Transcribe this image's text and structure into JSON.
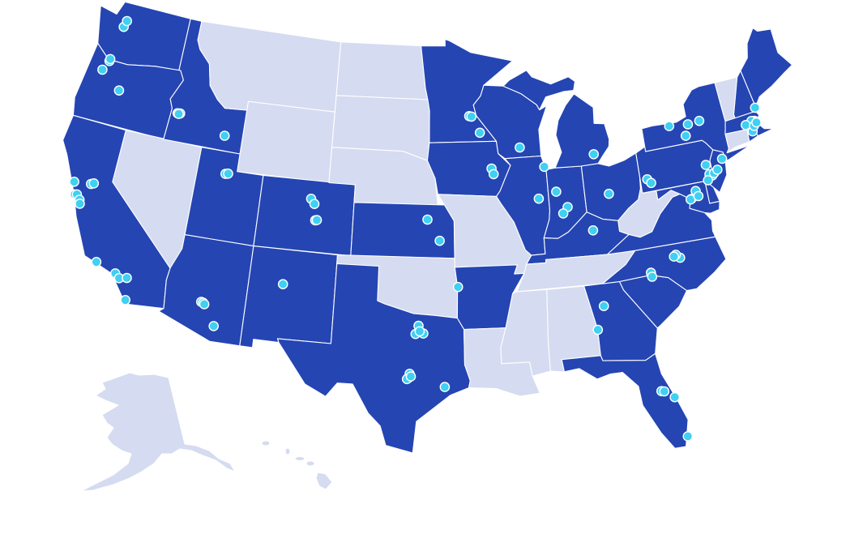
{
  "map": {
    "projection": "albers-usa",
    "colors": {
      "highlighted_state": "#2545b3",
      "other_state": "#d5dbf0",
      "border": "#ffffff",
      "location_dot": "#3fd0f2",
      "dot_outline": "#ffffff"
    },
    "highlighted_states": [
      "WA",
      "OR",
      "CA",
      "ID",
      "UT",
      "AZ",
      "CO",
      "NM",
      "TX",
      "KS",
      "MN",
      "IA",
      "WI",
      "IL",
      "MI",
      "IN",
      "OH",
      "KY",
      "AR",
      "PA",
      "NY",
      "NJ",
      "MD",
      "DE",
      "VA",
      "NC",
      "SC",
      "GA",
      "FL",
      "ME",
      "NH",
      "MA",
      "RI"
    ],
    "other_states": [
      "NV",
      "MT",
      "WY",
      "ND",
      "SD",
      "NE",
      "OK",
      "MO",
      "LA",
      "MS",
      "AL",
      "TN",
      "WV",
      "VT",
      "CT",
      "AK",
      "HI"
    ],
    "locations": [
      [
        -122.33,
        47.61
      ],
      [
        -122.2,
        47.98
      ],
      [
        -122.68,
        45.52
      ],
      [
        -122.66,
        45.64
      ],
      [
        -123.03,
        44.94
      ],
      [
        -121.31,
        44.06
      ],
      [
        -116.2,
        43.62
      ],
      [
        -116.4,
        43.6
      ],
      [
        -116.3,
        43.58
      ],
      [
        -112.45,
        42.87
      ],
      [
        -122.71,
        38.44
      ],
      [
        -121.49,
        38.58
      ],
      [
        -121.3,
        38.65
      ],
      [
        -122.42,
        37.77
      ],
      [
        -122.27,
        37.8
      ],
      [
        -121.99,
        37.55
      ],
      [
        -121.89,
        37.34
      ],
      [
        -119.7,
        34.42
      ],
      [
        -118.24,
        34.05
      ],
      [
        -117.91,
        33.84
      ],
      [
        -117.4,
        33.95
      ],
      [
        -117.16,
        32.72
      ],
      [
        -111.89,
        40.76
      ],
      [
        -111.7,
        40.8
      ],
      [
        -105.27,
        40.01
      ],
      [
        -104.99,
        39.74
      ],
      [
        -104.82,
        38.83
      ],
      [
        -104.7,
        38.85
      ],
      [
        -112.07,
        33.45
      ],
      [
        -111.93,
        33.42
      ],
      [
        -111.84,
        33.35
      ],
      [
        -110.97,
        32.22
      ],
      [
        -106.65,
        35.08
      ],
      [
        -97.13,
        33.21
      ],
      [
        -96.8,
        32.78
      ],
      [
        -97.33,
        32.75
      ],
      [
        -97.05,
        32.9
      ],
      [
        -97.74,
        30.27
      ],
      [
        -97.68,
        30.5
      ],
      [
        -97.85,
        30.2
      ],
      [
        -97.6,
        30.35
      ],
      [
        -95.37,
        29.76
      ],
      [
        -96.57,
        39.18
      ],
      [
        -95.67,
        37.99
      ],
      [
        -94.4,
        35.39
      ],
      [
        -93.27,
        44.98
      ],
      [
        -93.09,
        44.95
      ],
      [
        -92.46,
        44.02
      ],
      [
        -91.67,
        41.98
      ],
      [
        -91.53,
        41.66
      ],
      [
        -89.4,
        43.07
      ],
      [
        -87.63,
        41.88
      ],
      [
        -88.24,
        40.12
      ],
      [
        -86.9,
        40.42
      ],
      [
        -86.16,
        39.5
      ],
      [
        -86.53,
        39.17
      ],
      [
        -83.74,
        42.28
      ],
      [
        -83.0,
        39.96
      ],
      [
        -84.5,
        38.04
      ],
      [
        -80.0,
        40.44
      ],
      [
        -79.75,
        40.2
      ],
      [
        -77.61,
        43.16
      ],
      [
        -76.15,
        43.05
      ],
      [
        -75.23,
        43.1
      ],
      [
        -76.5,
        42.44
      ],
      [
        -74.17,
        40.74
      ],
      [
        -75.47,
        40.6
      ],
      [
        -75.16,
        39.95
      ],
      [
        -75.35,
        40.05
      ],
      [
        -75.0,
        40.05
      ],
      [
        -74.7,
        40.2
      ],
      [
        -75.55,
        39.74
      ],
      [
        -77.04,
        38.9
      ],
      [
        -77.1,
        38.88
      ],
      [
        -76.61,
        39.29
      ],
      [
        -76.49,
        38.98
      ],
      [
        -71.06,
        42.36
      ],
      [
        -71.12,
        42.37
      ],
      [
        -71.3,
        42.4
      ],
      [
        -71.8,
        42.26
      ],
      [
        -71.41,
        41.82
      ],
      [
        -71.2,
        42.1
      ],
      [
        -70.95,
        42.25
      ],
      [
        -70.76,
        43.07
      ],
      [
        -78.64,
        35.78
      ],
      [
        -78.9,
        35.99
      ],
      [
        -79.05,
        35.91
      ],
      [
        -80.84,
        35.23
      ],
      [
        -80.8,
        35.0
      ],
      [
        -84.39,
        33.75
      ],
      [
        -84.99,
        32.46
      ],
      [
        -81.38,
        28.54
      ],
      [
        -81.2,
        28.5
      ],
      [
        -80.6,
        28.08
      ],
      [
        -80.19,
        25.76
      ]
    ]
  }
}
